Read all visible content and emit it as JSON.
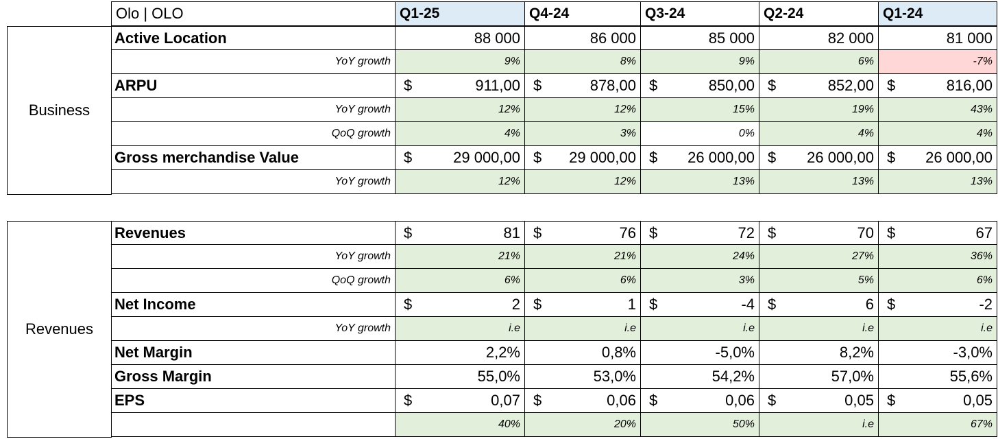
{
  "title": "Olo | OLO",
  "quarters": [
    "Q1-25",
    "Q4-24",
    "Q3-24",
    "Q2-24",
    "Q1-24"
  ],
  "quarter_highlight": [
    "blue",
    "none",
    "none",
    "none",
    "blue"
  ],
  "sections": {
    "business": "Business",
    "revenues": "Revenues"
  },
  "business_rows": [
    {
      "label": "Active Location",
      "type": "main",
      "currency": false,
      "values": [
        "88 000",
        "86 000",
        "85 000",
        "82 000",
        "81 000"
      ],
      "fill": [
        "none",
        "none",
        "none",
        "none",
        "none"
      ]
    },
    {
      "label": "YoY growth",
      "type": "sub",
      "values": [
        "9%",
        "8%",
        "9%",
        "6%",
        "-7%"
      ],
      "fill": [
        "green",
        "green",
        "green",
        "green",
        "red"
      ]
    },
    {
      "label": "ARPU",
      "type": "main",
      "currency": true,
      "values": [
        "911,00",
        "878,00",
        "850,00",
        "852,00",
        "816,00"
      ],
      "fill": [
        "none",
        "none",
        "none",
        "none",
        "none"
      ]
    },
    {
      "label": "YoY growth",
      "type": "sub",
      "values": [
        "12%",
        "12%",
        "15%",
        "19%",
        "43%"
      ],
      "fill": [
        "green",
        "green",
        "green",
        "green",
        "green"
      ]
    },
    {
      "label": "QoQ growth",
      "type": "sub",
      "values": [
        "4%",
        "3%",
        "0%",
        "4%",
        "4%"
      ],
      "fill": [
        "green",
        "green",
        "none",
        "green",
        "green"
      ]
    },
    {
      "label": "Gross merchandise Value",
      "type": "main",
      "currency": true,
      "values": [
        "29 000,00",
        "29 000,00",
        "26 000,00",
        "26 000,00",
        "26 000,00"
      ],
      "fill": [
        "none",
        "none",
        "none",
        "none",
        "none"
      ]
    },
    {
      "label": "YoY growth",
      "type": "sub",
      "values": [
        "12%",
        "12%",
        "13%",
        "13%",
        "13%"
      ],
      "fill": [
        "green",
        "green",
        "green",
        "green",
        "green"
      ]
    }
  ],
  "revenue_rows": [
    {
      "label": "Revenues",
      "type": "main",
      "currency": true,
      "values": [
        "81",
        "76",
        "72",
        "70",
        "67"
      ],
      "fill": [
        "none",
        "none",
        "none",
        "none",
        "none"
      ]
    },
    {
      "label": "YoY growth",
      "type": "sub",
      "values": [
        "21%",
        "21%",
        "24%",
        "27%",
        "36%"
      ],
      "fill": [
        "green",
        "green",
        "green",
        "green",
        "green"
      ]
    },
    {
      "label": "QoQ growth",
      "type": "sub",
      "values": [
        "6%",
        "6%",
        "3%",
        "5%",
        "6%"
      ],
      "fill": [
        "green",
        "green",
        "green",
        "green",
        "green"
      ]
    },
    {
      "label": "Net Income",
      "type": "main",
      "currency": true,
      "values": [
        "2",
        "1",
        "-4",
        "6",
        "-2"
      ],
      "fill": [
        "none",
        "none",
        "none",
        "none",
        "none"
      ]
    },
    {
      "label": "YoY growth",
      "type": "sub",
      "values": [
        "i.e",
        "i.e",
        "i.e",
        "i.e",
        "i.e"
      ],
      "fill": [
        "green",
        "green",
        "green",
        "green",
        "green"
      ]
    },
    {
      "label": "Net Margin",
      "type": "main",
      "currency": false,
      "values": [
        "2,2%",
        "0,8%",
        "-5,0%",
        "8,2%",
        "-3,0%"
      ],
      "fill": [
        "none",
        "none",
        "none",
        "none",
        "none"
      ]
    },
    {
      "label": "Gross Margin",
      "type": "main",
      "currency": false,
      "values": [
        "55,0%",
        "53,0%",
        "54,2%",
        "57,0%",
        "55,6%"
      ],
      "fill": [
        "none",
        "none",
        "none",
        "none",
        "none"
      ]
    },
    {
      "label": "EPS",
      "type": "main",
      "currency": true,
      "values": [
        "0,07",
        "0,06",
        "0,06",
        "0,05",
        "0,05"
      ],
      "fill": [
        "none",
        "none",
        "none",
        "none",
        "none"
      ]
    },
    {
      "label": "",
      "type": "sub",
      "values": [
        "40%",
        "20%",
        "50%",
        "i.e",
        "67%"
      ],
      "fill": [
        "green",
        "green",
        "green",
        "green",
        "green"
      ]
    }
  ],
  "currency_symbol": "$"
}
